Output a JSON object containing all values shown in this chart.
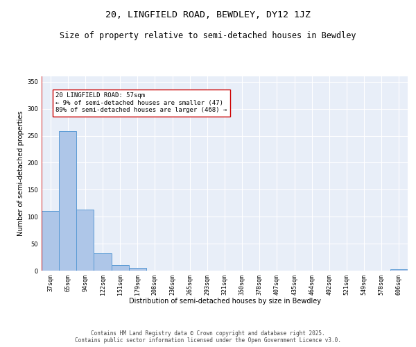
{
  "title_line1": "20, LINGFIELD ROAD, BEWDLEY, DY12 1JZ",
  "title_line2": "Size of property relative to semi-detached houses in Bewdley",
  "xlabel": "Distribution of semi-detached houses by size in Bewdley",
  "ylabel": "Number of semi-detached properties",
  "categories": [
    "37sqm",
    "65sqm",
    "94sqm",
    "122sqm",
    "151sqm",
    "179sqm",
    "208sqm",
    "236sqm",
    "265sqm",
    "293sqm",
    "321sqm",
    "350sqm",
    "378sqm",
    "407sqm",
    "435sqm",
    "464sqm",
    "492sqm",
    "521sqm",
    "549sqm",
    "578sqm",
    "606sqm"
  ],
  "values": [
    110,
    258,
    113,
    32,
    10,
    5,
    0,
    0,
    0,
    0,
    0,
    0,
    0,
    0,
    0,
    0,
    0,
    0,
    0,
    0,
    2
  ],
  "bar_color": "#aec6e8",
  "bar_edge_color": "#5b9bd5",
  "vline_color": "#cc0000",
  "annotation_text": "20 LINGFIELD ROAD: 57sqm\n← 9% of semi-detached houses are smaller (47)\n89% of semi-detached houses are larger (468) →",
  "annotation_box_color": "#ffffff",
  "annotation_box_edge_color": "#cc0000",
  "ylim": [
    0,
    360
  ],
  "yticks": [
    0,
    50,
    100,
    150,
    200,
    250,
    300,
    350
  ],
  "background_color": "#e8eef8",
  "grid_color": "#ffffff",
  "footer_line1": "Contains HM Land Registry data © Crown copyright and database right 2025.",
  "footer_line2": "Contains public sector information licensed under the Open Government Licence v3.0.",
  "title_fontsize": 9.5,
  "subtitle_fontsize": 8.5,
  "axis_label_fontsize": 7,
  "tick_fontsize": 6,
  "annotation_fontsize": 6.5,
  "footer_fontsize": 5.5
}
